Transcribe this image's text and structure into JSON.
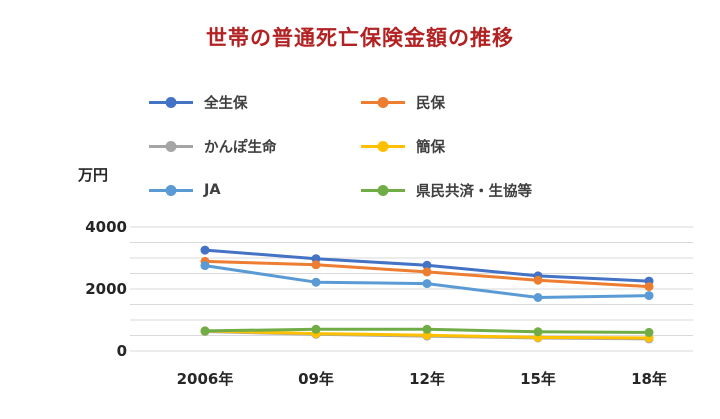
{
  "colors": {
    "title": "#b22222",
    "axis_text": "#262626",
    "legend_text": "#3f3f3f",
    "gridline": "#d9d9d9",
    "background": "#ffffff"
  },
  "chart_data": {
    "type": "line",
    "title": "世帯の普通死亡保険金額の推移",
    "y_unit_label": "万円",
    "x_categories": [
      "2006年",
      "09年",
      "12年",
      "15年",
      "18年"
    ],
    "y_ticks": [
      {
        "value": 4000,
        "label": "4000"
      },
      {
        "value": 2000,
        "label": "2000"
      },
      {
        "value": 0,
        "label": "0"
      }
    ],
    "ylim": [
      0,
      4000
    ],
    "gridline_interval": 500,
    "grid": true,
    "legend_position": "top",
    "series": [
      {
        "name": "全生保",
        "color": "#4472C4",
        "values": [
          3255,
          2978,
          2763,
          2423,
          2255
        ]
      },
      {
        "name": "民保",
        "color": "#ED7D31",
        "values": [
          2890,
          2780,
          2550,
          2284,
          2079
        ]
      },
      {
        "name": "かんぽ生命",
        "color": "#A5A5A5",
        "values": [
          630,
          540,
          480,
          420,
          390
        ]
      },
      {
        "name": "簡保",
        "color": "#FFC000",
        "values": [
          650,
          560,
          510,
          440,
          420
        ]
      },
      {
        "name": "JA",
        "color": "#5B9BD5",
        "values": [
          2754,
          2219,
          2175,
          1725,
          1786
        ]
      },
      {
        "name": "県民共済・生協等",
        "color": "#70AD47",
        "values": [
          650,
          700,
          700,
          620,
          600
        ]
      }
    ]
  }
}
